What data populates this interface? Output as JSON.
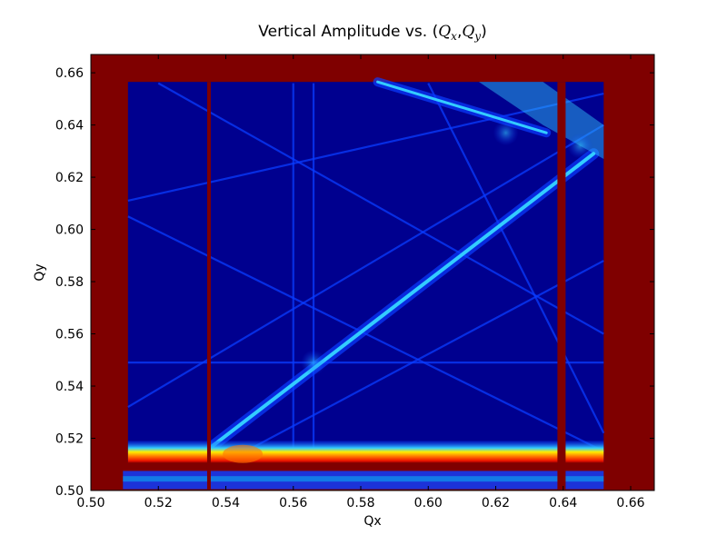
{
  "chart_data": {
    "type": "heatmap",
    "title": {
      "prefix": "Vertical Amplitude vs. (",
      "qx_var": "Q",
      "qx_sub": "x",
      "sep": ",",
      "qy_var": "Q",
      "qy_sub": "y",
      "suffix": ")"
    },
    "xlabel": "Qx",
    "ylabel": "Qy",
    "xlim": [
      0.5,
      0.667
    ],
    "ylim": [
      0.5,
      0.667
    ],
    "xticks": [
      "0.50",
      "0.52",
      "0.54",
      "0.56",
      "0.58",
      "0.60",
      "0.62",
      "0.64",
      "0.66"
    ],
    "yticks": [
      "0.50",
      "0.52",
      "0.54",
      "0.56",
      "0.58",
      "0.60",
      "0.62",
      "0.64",
      "0.66"
    ],
    "grid": false,
    "colormap": "jet",
    "colors": {
      "saturated": "#7f0000",
      "low": "#00008f",
      "mid": "#0a3cff",
      "ridge": "#33ccff",
      "band_yellow": "#ffee00",
      "band_orange": "#ff7700",
      "band_red": "#ee1100",
      "cyan": "#00ffff"
    },
    "regions": {
      "stable_region": {
        "qx": [
          0.511,
          0.652
        ],
        "qy": [
          0.511,
          0.6565
        ]
      },
      "unstable_columns_qx": [
        0.535,
        0.6395
      ],
      "ridge": {
        "from": [
          0.536,
          0.517
        ],
        "to": [
          0.649,
          0.629
        ]
      },
      "upper_ridge": {
        "from": [
          0.585,
          0.6565
        ],
        "to": [
          0.635,
          0.637
        ]
      },
      "resonance_lines": [
        {
          "from": [
            0.511,
            0.611
          ],
          "to": [
            0.652,
            0.652
          ]
        },
        {
          "from": [
            0.511,
            0.605
          ],
          "to": [
            0.652,
            0.515
          ]
        },
        {
          "from": [
            0.511,
            0.549
          ],
          "to": [
            0.652,
            0.549
          ]
        },
        {
          "from": [
            0.511,
            0.532
          ],
          "to": [
            0.652,
            0.64
          ]
        },
        {
          "from": [
            0.54,
            0.511
          ],
          "to": [
            0.652,
            0.588
          ]
        },
        {
          "from": [
            0.56,
            0.511
          ],
          "to": [
            0.56,
            0.656
          ]
        },
        {
          "from": [
            0.566,
            0.511
          ],
          "to": [
            0.566,
            0.656
          ]
        },
        {
          "from": [
            0.6,
            0.656
          ],
          "to": [
            0.652,
            0.522
          ]
        },
        {
          "from": [
            0.52,
            0.656
          ],
          "to": [
            0.652,
            0.56
          ]
        }
      ],
      "low_band_qy": [
        0.5105,
        0.519
      ]
    }
  }
}
